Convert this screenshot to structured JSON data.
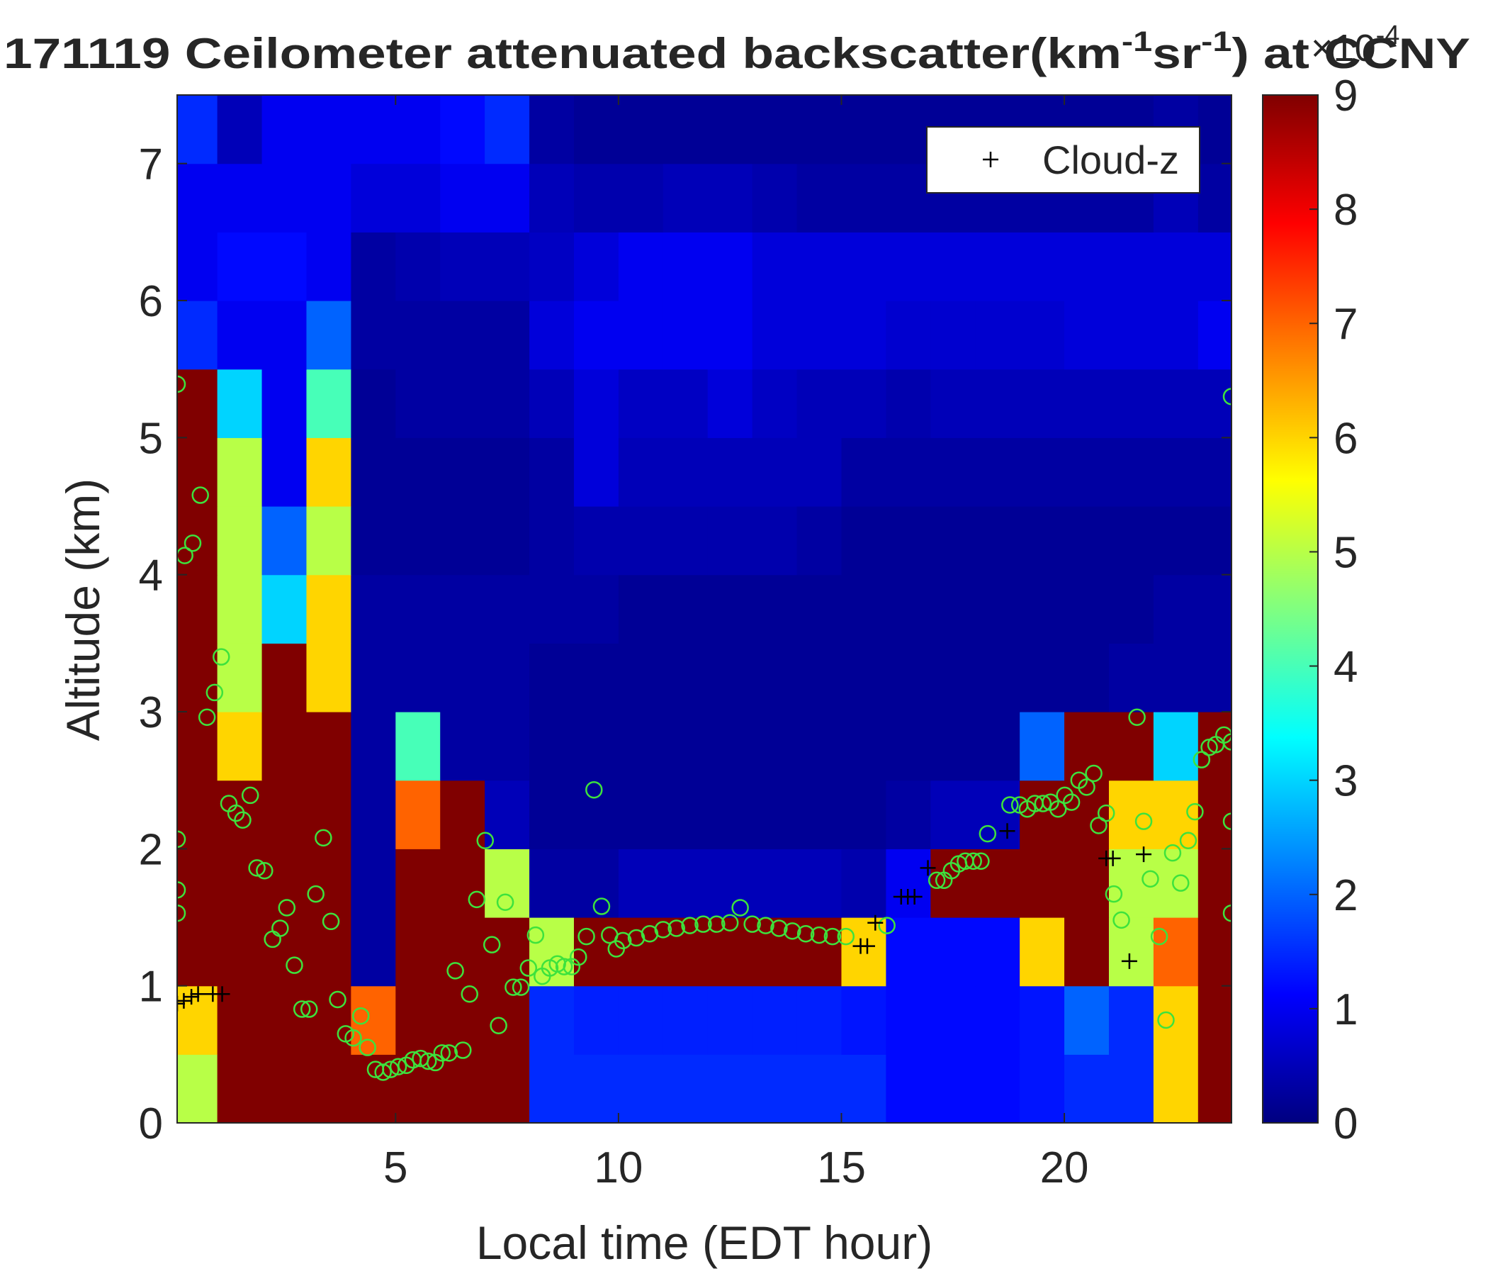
{
  "chart_data": {
    "type": "heatmap",
    "title": [
      "171119 Ceilometer attenuated backscatter(km",
      "-1",
      "sr",
      "-1",
      ") at CCNY"
    ],
    "xlabel": "Local time (EDT hour)",
    "ylabel": "Altitude (km)",
    "colormap": "jet",
    "x_edges": [
      0,
      1,
      2,
      3,
      4,
      5,
      6,
      7,
      8,
      9,
      10,
      11,
      12,
      13,
      14,
      15,
      16,
      17,
      18,
      19,
      20,
      21,
      22,
      23,
      24
    ],
    "y_edges": [
      0,
      0.5,
      1,
      1.5,
      2,
      2.5,
      3,
      3.5,
      4,
      4.5,
      5,
      5.5,
      6,
      6.5,
      7,
      7.5
    ],
    "z": [
      [
        5,
        9,
        9,
        9,
        9,
        9,
        9,
        9,
        1.5,
        1.5,
        1.5,
        1.5,
        1.5,
        1.5,
        1.5,
        1.5,
        1.2,
        1.2,
        1.2,
        1.3,
        1.5,
        1.5,
        6,
        9
      ],
      [
        6,
        9,
        9,
        9,
        7,
        9,
        9,
        9,
        1.5,
        1.4,
        1.4,
        1.4,
        1.4,
        1.4,
        1.4,
        1.3,
        1.2,
        1.2,
        1.2,
        1.3,
        2,
        1.5,
        6,
        9
      ],
      [
        9,
        9,
        9,
        9,
        0.3,
        9,
        9,
        9,
        5,
        9,
        9,
        9,
        9,
        9,
        9,
        6,
        1.2,
        1.2,
        1.2,
        6,
        9,
        5,
        7,
        9
      ],
      [
        9,
        9,
        9,
        9,
        0.3,
        9,
        9,
        5,
        0.3,
        0.3,
        0.5,
        0.5,
        0.5,
        0.5,
        0.5,
        0.4,
        1,
        9,
        9,
        9,
        9,
        5,
        5,
        9
      ],
      [
        9,
        9,
        9,
        9,
        0.3,
        7,
        9,
        0.5,
        0.2,
        0.2,
        0.2,
        0.2,
        0.2,
        0.2,
        0.2,
        0.2,
        0.3,
        0.5,
        0.5,
        9,
        9,
        6,
        6,
        9
      ],
      [
        9,
        6,
        9,
        9,
        0.3,
        4,
        0.3,
        0.3,
        0.2,
        0.2,
        0.2,
        0.2,
        0.2,
        0.2,
        0.2,
        0.2,
        0.2,
        0.2,
        0.2,
        2,
        9,
        9,
        3,
        9
      ],
      [
        9,
        5,
        9,
        6,
        0.3,
        0.3,
        0.3,
        0.3,
        0.2,
        0.2,
        0.2,
        0.2,
        0.2,
        0.2,
        0.2,
        0.2,
        0.2,
        0.2,
        0.2,
        0.2,
        0.2,
        0.3,
        0.3,
        0.3
      ],
      [
        9,
        5,
        3,
        6,
        0.3,
        0.3,
        0.3,
        0.3,
        0.3,
        0.3,
        0.2,
        0.2,
        0.2,
        0.2,
        0.2,
        0.2,
        0.2,
        0.2,
        0.2,
        0.2,
        0.2,
        0.2,
        0.3,
        0.3
      ],
      [
        9,
        5,
        2,
        5,
        0.2,
        0.2,
        0.2,
        0.2,
        0.3,
        0.4,
        0.4,
        0.4,
        0.4,
        0.4,
        0.3,
        0.2,
        0.2,
        0.2,
        0.2,
        0.2,
        0.2,
        0.2,
        0.2,
        0.2
      ],
      [
        9,
        5,
        1,
        6,
        0.2,
        0.2,
        0.2,
        0.2,
        0.3,
        0.8,
        0.5,
        0.5,
        0.5,
        0.5,
        0.5,
        0.3,
        0.3,
        0.3,
        0.3,
        0.3,
        0.3,
        0.3,
        0.3,
        0.3
      ],
      [
        9,
        3,
        1,
        4,
        0.2,
        0.3,
        0.3,
        0.3,
        0.5,
        0.8,
        0.6,
        0.6,
        0.8,
        0.6,
        0.5,
        0.5,
        0.4,
        0.5,
        0.5,
        0.5,
        0.5,
        0.5,
        0.5,
        0.5
      ],
      [
        1.5,
        1,
        1,
        2,
        0.3,
        0.3,
        0.3,
        0.3,
        0.8,
        1,
        1,
        1,
        1,
        0.8,
        0.8,
        0.8,
        0.7,
        0.7,
        0.7,
        0.7,
        0.8,
        0.8,
        0.8,
        1
      ],
      [
        1,
        1.2,
        1.2,
        1,
        0.3,
        0.4,
        0.5,
        0.5,
        0.6,
        0.8,
        1,
        1,
        1,
        0.8,
        0.8,
        0.8,
        0.8,
        0.8,
        0.8,
        0.8,
        0.8,
        0.8,
        0.8,
        0.8
      ],
      [
        1,
        1,
        1,
        1,
        0.8,
        0.8,
        1,
        1,
        0.5,
        0.4,
        0.4,
        0.5,
        0.5,
        0.4,
        0.3,
        0.3,
        0.3,
        0.3,
        0.3,
        0.3,
        0.3,
        0.3,
        0.5,
        0.3
      ],
      [
        1.5,
        0.5,
        1,
        1,
        1,
        1,
        1.2,
        1.5,
        0.3,
        0.2,
        0.2,
        0.2,
        0.2,
        0.2,
        0.2,
        0.2,
        0.2,
        0.2,
        0.2,
        0.2,
        0.2,
        0.2,
        0.3,
        0.2
      ]
    ],
    "xlim": [
      0.1,
      23.75
    ],
    "ylim": [
      0,
      7.5
    ],
    "xticks": [
      5,
      10,
      15,
      20
    ],
    "yticks": [
      0,
      1,
      2,
      3,
      4,
      5,
      6,
      7
    ],
    "clim": [
      0,
      9
    ],
    "cticks": [
      0,
      1,
      2,
      3,
      4,
      5,
      6,
      7,
      8,
      9
    ],
    "colorbar_exponent": [
      "×10",
      "-4"
    ],
    "legend": "upper right",
    "overlays": [
      {
        "type": "scatter",
        "marker": "circle",
        "color": "#3de23d",
        "x": [
          0.1,
          0.1,
          0.1,
          0.1,
          0.27,
          0.45,
          0.62,
          0.77,
          0.94,
          1.09,
          1.26,
          1.42,
          1.57,
          1.74,
          1.89,
          2.06,
          2.24,
          2.41,
          2.56,
          2.73,
          2.9,
          3.06,
          3.21,
          3.38,
          3.55,
          3.7,
          3.88,
          4.05,
          4.22,
          4.37,
          4.55,
          4.72,
          4.89,
          5.06,
          5.24,
          5.39,
          5.56,
          5.73,
          5.89,
          6.04,
          6.2,
          6.34,
          6.51,
          6.66,
          6.82,
          7.01,
          7.16,
          7.31,
          7.46,
          7.64,
          7.81,
          7.98,
          8.14,
          8.29,
          8.46,
          8.63,
          8.78,
          8.95,
          9.1,
          9.28,
          9.45,
          9.62,
          9.8,
          9.95,
          10.1,
          10.4,
          10.7,
          11.0,
          11.3,
          11.6,
          11.9,
          12.2,
          12.5,
          12.73,
          13.0,
          13.3,
          13.6,
          13.9,
          14.2,
          14.5,
          14.8,
          15.1,
          16.02,
          17.14,
          17.3,
          17.47,
          17.63,
          17.78,
          17.96,
          18.13,
          18.28,
          18.78,
          19.0,
          19.17,
          19.34,
          19.52,
          19.69,
          19.86,
          20.01,
          20.16,
          20.33,
          20.5,
          20.66,
          20.77,
          20.94,
          21.11,
          21.28,
          21.63,
          21.78,
          21.93,
          22.13,
          22.28,
          22.43,
          22.61,
          22.78,
          22.93,
          23.08,
          23.25,
          23.4,
          23.58,
          23.75,
          23.75,
          23.75,
          23.75
        ],
        "y": [
          2.07,
          1.7,
          1.53,
          5.39,
          4.14,
          4.23,
          4.58,
          2.96,
          3.14,
          3.4,
          2.33,
          2.26,
          2.21,
          2.39,
          1.86,
          1.84,
          1.34,
          1.42,
          1.57,
          1.15,
          0.83,
          0.83,
          1.67,
          2.08,
          1.47,
          0.9,
          0.65,
          0.62,
          0.78,
          0.55,
          0.39,
          0.37,
          0.39,
          0.41,
          0.42,
          0.46,
          0.47,
          0.45,
          0.44,
          0.51,
          0.51,
          1.11,
          0.53,
          0.94,
          1.63,
          2.06,
          1.3,
          0.71,
          1.61,
          0.99,
          0.99,
          1.13,
          1.37,
          1.07,
          1.13,
          1.16,
          1.14,
          1.14,
          1.21,
          1.36,
          2.43,
          1.58,
          1.37,
          1.27,
          1.33,
          1.35,
          1.38,
          1.41,
          1.42,
          1.44,
          1.45,
          1.45,
          1.46,
          1.57,
          1.45,
          1.44,
          1.42,
          1.4,
          1.38,
          1.37,
          1.36,
          1.36,
          1.44,
          1.77,
          1.77,
          1.84,
          1.89,
          1.91,
          1.91,
          1.91,
          2.11,
          2.32,
          2.32,
          2.29,
          2.33,
          2.33,
          2.34,
          2.29,
          2.39,
          2.34,
          2.5,
          2.45,
          2.55,
          2.17,
          2.26,
          1.67,
          1.48,
          2.96,
          2.2,
          1.78,
          1.36,
          0.75,
          1.97,
          1.75,
          2.06,
          2.27,
          2.65,
          2.74,
          2.76,
          2.83,
          2.78,
          5.3,
          2.2,
          1.53
        ]
      },
      {
        "type": "scatter",
        "marker": "plus",
        "name": "Cloud-z",
        "color": "#000000",
        "x": [
          0.1,
          0.25,
          0.42,
          0.57,
          0.9,
          1.11,
          15.43,
          15.58,
          15.76,
          16.34,
          16.49,
          16.64,
          16.94,
          18.72,
          20.94,
          21.09,
          21.46,
          21.78
        ],
        "y": [
          0.87,
          0.89,
          0.92,
          0.94,
          0.94,
          0.94,
          1.29,
          1.29,
          1.46,
          1.65,
          1.65,
          1.65,
          1.86,
          2.13,
          1.93,
          1.93,
          1.18,
          1.96
        ]
      }
    ]
  }
}
